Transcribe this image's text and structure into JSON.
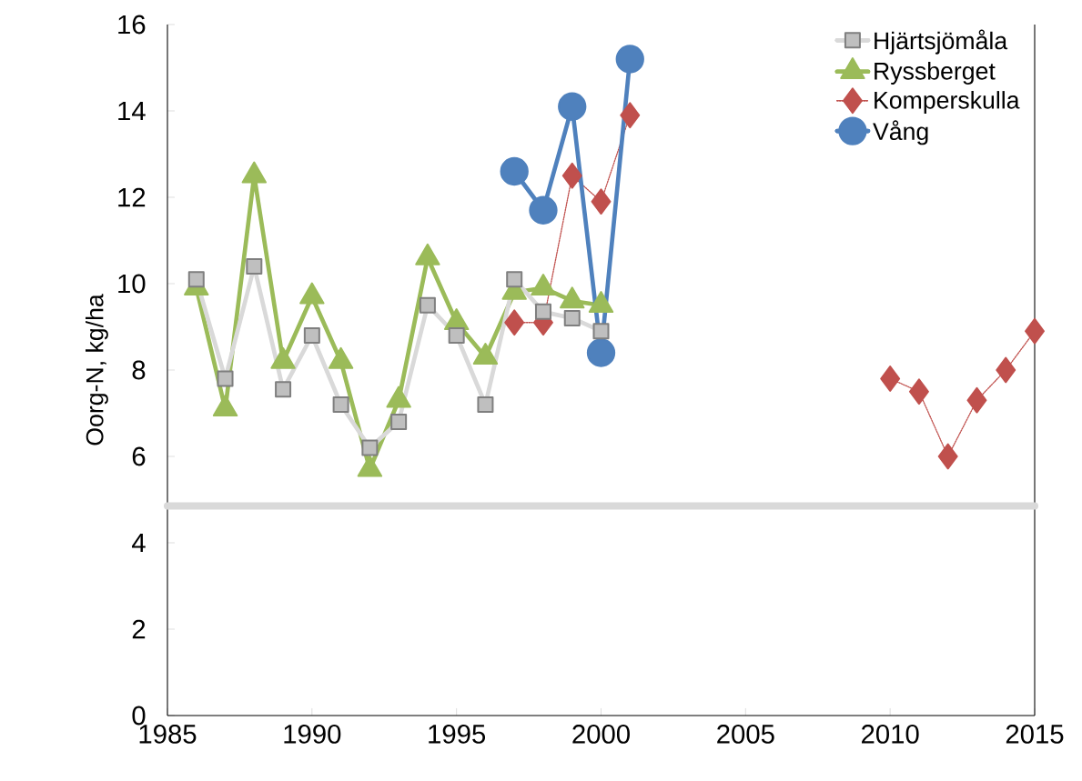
{
  "chart_data": {
    "type": "line",
    "ylabel": "Oorg-N, kg/ha",
    "xlim": [
      1985,
      2015
    ],
    "xticks": [
      1985,
      1990,
      1995,
      2000,
      2005,
      2010,
      2015
    ],
    "ylim": [
      0,
      16
    ],
    "yticks": [
      0,
      2,
      4,
      6,
      8,
      10,
      12,
      14,
      16
    ],
    "grid": false,
    "legend": "top right",
    "series": [
      {
        "name": "Hjärtsjömåla",
        "color": "#bfbfbf",
        "marker": "square",
        "line_style": "solid",
        "x": [
          1986,
          1987,
          1988,
          1989,
          1990,
          1991,
          1992,
          1993,
          1994,
          1995,
          1996,
          1997,
          1998,
          1999,
          2000
        ],
        "values": [
          10.1,
          7.8,
          10.4,
          7.55,
          8.8,
          7.2,
          6.2,
          6.8,
          9.5,
          8.8,
          7.2,
          10.1,
          9.35,
          9.2,
          8.9
        ]
      },
      {
        "name": "Ryssberget",
        "color": "#9bbb59",
        "marker": "triangle",
        "line_style": "solid",
        "x": [
          1986,
          1987,
          1988,
          1989,
          1990,
          1991,
          1992,
          1993,
          1994,
          1995,
          1996,
          1997,
          1998,
          1999,
          2000
        ],
        "values": [
          9.9,
          7.1,
          12.5,
          8.2,
          9.7,
          8.2,
          5.7,
          7.3,
          10.6,
          9.1,
          8.3,
          9.8,
          9.9,
          9.6,
          9.5
        ]
      },
      {
        "name": "Komperskulla",
        "color": "#c0504d",
        "marker": "diamond",
        "line_style": "dotted",
        "x": [
          1997,
          1998,
          1999,
          2000,
          2001,
          2002,
          2010,
          2011,
          2012,
          2013,
          2014,
          2015
        ],
        "values": [
          9.1,
          9.1,
          12.5,
          11.9,
          13.9,
          null,
          7.8,
          7.5,
          6.0,
          7.3,
          8.0,
          8.9
        ]
      },
      {
        "name": "Vång",
        "color": "#4f81bd",
        "marker": "circle",
        "line_style": "solid",
        "x": [
          1997,
          1998,
          1999,
          2000,
          2001
        ],
        "values": [
          12.6,
          11.7,
          14.1,
          8.4,
          15.2
        ]
      }
    ],
    "ref_lines": [
      {
        "axis": "y",
        "value": 4.85,
        "color": "#d9d9d9"
      }
    ]
  }
}
